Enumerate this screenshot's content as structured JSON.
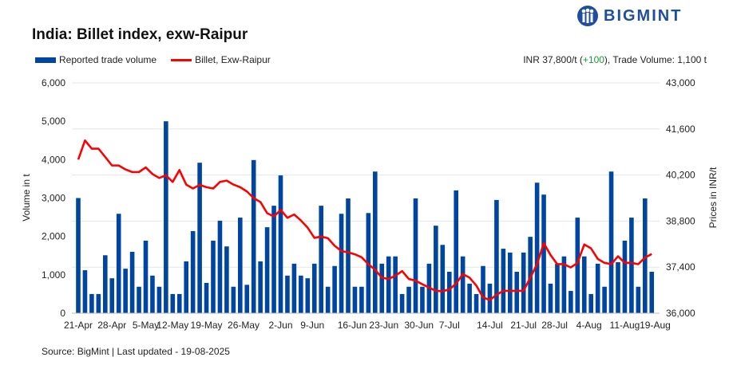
{
  "brand": {
    "name": "BIGMINT",
    "color": "#1f4e9c"
  },
  "header": {
    "title": "India: Billet index, exw-Raipur",
    "info_prefix": "INR 37,800/t (",
    "info_change": "+100",
    "info_suffix": "), Trade Volume: 1,100 t",
    "change_color": "#1a9a3a"
  },
  "footer": {
    "source": "Source: BigMint | Last updated - 19-08-2025"
  },
  "chart_data": {
    "type": "bar+line",
    "title": "India: Billet index, exw-Raipur",
    "ylabel_left": "Volume in t",
    "ylabel_right": "Prices in INR/t",
    "ylim_left": [
      0,
      6000
    ],
    "ylim_right": [
      36000,
      43000
    ],
    "yticks_left": [
      "0",
      "1,000",
      "2,000",
      "3,000",
      "4,000",
      "5,000",
      "6,000"
    ],
    "yticks_right": [
      "36,000",
      "37,400",
      "38,800",
      "40,200",
      "41,600",
      "43,000"
    ],
    "grid": "horizontal (right axis)",
    "legend_placement": "top-left",
    "xticks": [
      {
        "label": "21-Apr",
        "bar": 0
      },
      {
        "label": "28-Apr",
        "bar": 5
      },
      {
        "label": "5-May",
        "bar": 10
      },
      {
        "label": "12-May",
        "bar": 14
      },
      {
        "label": "19-May",
        "bar": 19
      },
      {
        "label": "26-May",
        "bar": 24.5
      },
      {
        "label": "2-Jun",
        "bar": 30
      },
      {
        "label": "9-Jun",
        "bar": 34.7
      },
      {
        "label": "16-Jun",
        "bar": 40.6
      },
      {
        "label": "23-Jun",
        "bar": 45.3
      },
      {
        "label": "30-Jun",
        "bar": 50.5
      },
      {
        "label": "7-Jul",
        "bar": 55
      },
      {
        "label": "14-Jul",
        "bar": 61
      },
      {
        "label": "21-Jul",
        "bar": 66
      },
      {
        "label": "28-Jul",
        "bar": 70.6
      },
      {
        "label": "4-Aug",
        "bar": 75.7
      },
      {
        "label": "11-Aug",
        "bar": 81
      },
      {
        "label": "19-Aug",
        "bar": 85.5
      }
    ],
    "series": [
      {
        "name": "Reported trade volume",
        "type": "bar",
        "axis": "left",
        "color": "#0046a0",
        "values": [
          3000,
          1120,
          500,
          500,
          1510,
          910,
          2590,
          1160,
          1600,
          690,
          1890,
          980,
          690,
          5000,
          500,
          500,
          1350,
          2140,
          3920,
          790,
          1890,
          2410,
          1740,
          690,
          2490,
          740,
          3990,
          1350,
          2240,
          2800,
          3590,
          980,
          1290,
          980,
          910,
          1290,
          2800,
          690,
          1230,
          2590,
          2990,
          690,
          690,
          2610,
          3690,
          1290,
          1480,
          1480,
          500,
          690,
          2990,
          690,
          1290,
          2280,
          1780,
          1080,
          3200,
          1480,
          770,
          500,
          1230,
          770,
          2950,
          1680,
          1580,
          1080,
          1580,
          1990,
          3400,
          3090,
          770,
          1290,
          1480,
          580,
          2490,
          1480,
          500,
          1290,
          690,
          3690,
          1330,
          1890,
          2490,
          690,
          2990,
          1080
        ]
      },
      {
        "name": "Billet, Exw-Raipur",
        "type": "line",
        "axis": "right",
        "color": "#ff0000",
        "values": [
          40670,
          41250,
          41000,
          41000,
          40750,
          40490,
          40490,
          40370,
          40290,
          40290,
          40430,
          40230,
          40110,
          40190,
          39990,
          40350,
          39910,
          39790,
          39900,
          39830,
          39790,
          39990,
          40030,
          39910,
          39830,
          39700,
          39500,
          39380,
          39040,
          38940,
          39140,
          38900,
          39000,
          38820,
          38600,
          38290,
          38330,
          38280,
          38050,
          37890,
          37850,
          37790,
          37700,
          37490,
          37320,
          37080,
          37040,
          37140,
          37280,
          37040,
          36990,
          36880,
          36780,
          36680,
          36670,
          36720,
          36900,
          37190,
          37080,
          36840,
          36480,
          36400,
          36560,
          36680,
          36680,
          36680,
          36680,
          37080,
          37490,
          38130,
          37770,
          37490,
          37490,
          37390,
          37530,
          38090,
          37970,
          37650,
          37530,
          37490,
          37730,
          37530,
          37530,
          37490,
          37690,
          37800
        ]
      }
    ]
  }
}
